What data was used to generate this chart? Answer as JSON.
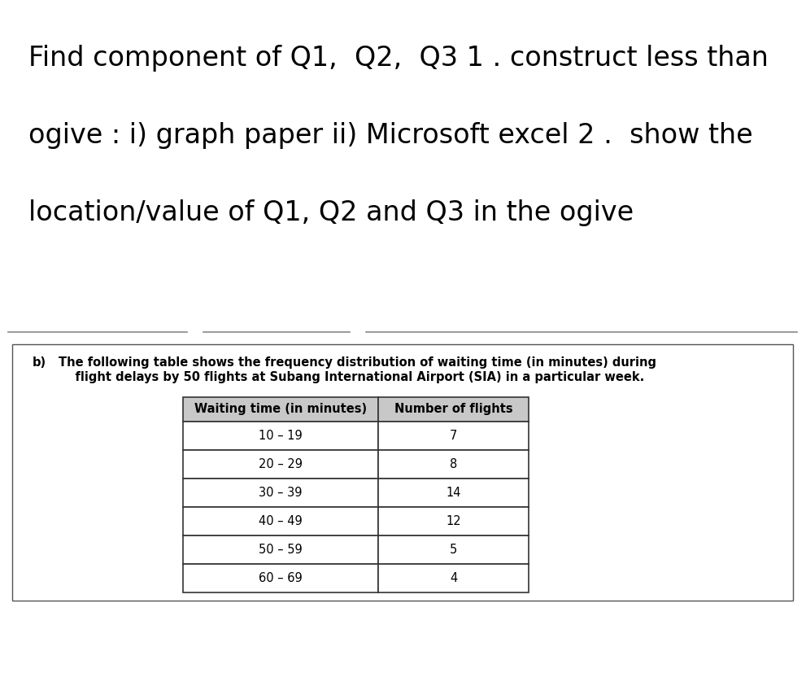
{
  "title_line1": "Find component of Q1,  Q2,  Q3 1 . construct less than",
  "title_line2": "ogive : i) graph paper ii) Microsoft excel 2 .  show the",
  "title_line3": "location/value of Q1, Q2 and Q3 in the ogive",
  "part_b_label": "b)",
  "part_b_text_line1": "The following table shows the frequency distribution of waiting time (in minutes) during",
  "part_b_text_line2": "    flight delays by 50 flights at Subang International Airport (SIA) in a particular week.",
  "col1_header": "Waiting time (in minutes)",
  "col2_header": "Number of flights",
  "rows": [
    [
      "10 – 19",
      "7"
    ],
    [
      "20 – 29",
      "8"
    ],
    [
      "30 – 39",
      "14"
    ],
    [
      "40 – 49",
      "12"
    ],
    [
      "50 – 59",
      "5"
    ],
    [
      "60 – 69",
      "4"
    ]
  ],
  "bg_color": "#ffffff",
  "text_color": "#000000",
  "header_bg": "#c8c8c8",
  "title_fontsize": 24,
  "body_fontsize": 10.5,
  "table_fontsize": 10.5,
  "sep_line_color": "#888888",
  "box_edge_color": "#555555"
}
